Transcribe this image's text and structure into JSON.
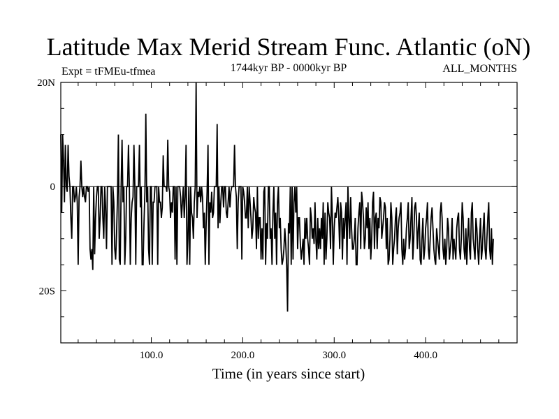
{
  "chart_data": {
    "type": "line",
    "title": "Latitude Max Merid Stream Func. Atlantic (oN)",
    "left_subtitle": "Expt = tFMEu-tfmea",
    "center_subtitle": "1744kyr BP - 0000kyr BP",
    "right_subtitle": "ALL_MONTHS",
    "xlabel": "Time (in years since start)",
    "ylabel": "",
    "xlim": [
      1,
      500
    ],
    "ylim": [
      -30,
      20
    ],
    "x_ticks": [
      100,
      200,
      300,
      400
    ],
    "x_tick_labels": [
      "100.0",
      "200.0",
      "300.0",
      "400.0"
    ],
    "y_ticks": [
      20,
      0,
      -20
    ],
    "y_tick_labels": [
      "20N",
      "0",
      "20S"
    ],
    "y_minor_ticks": [
      15,
      10,
      5,
      -5,
      -10,
      -15,
      -25
    ],
    "zero_line": true,
    "grid": false,
    "legend": "none",
    "series": [
      {
        "line_color": "#000000",
        "x_start": 1,
        "x_step": 1,
        "values": [
          10,
          -5,
          10,
          5,
          -3,
          8,
          0,
          -1,
          8,
          2,
          0,
          -6,
          -10,
          0,
          0,
          -3,
          -2,
          0,
          -3,
          -15,
          -2,
          0,
          5,
          0,
          -2,
          0,
          -2,
          -3,
          0,
          0,
          -1,
          0,
          -12,
          -14,
          -12,
          -16,
          0,
          -13,
          -6,
          -2,
          0,
          0,
          -10,
          -6,
          0,
          0,
          -6,
          -10,
          0,
          -4,
          -12,
          0,
          0,
          0,
          0,
          0,
          -15,
          0,
          -3,
          -12,
          -14,
          -9,
          -2,
          10,
          -14,
          -15,
          0,
          9,
          -3,
          0,
          -15,
          -10,
          0,
          0,
          8,
          0,
          -15,
          -6,
          -3,
          -2,
          8,
          0,
          -15,
          0,
          0,
          0,
          8,
          -4,
          0,
          -15,
          -15,
          -7,
          -1,
          14,
          -3,
          0,
          -12,
          -15,
          0,
          0,
          -15,
          -3,
          -3,
          0,
          0,
          0,
          -15,
          0,
          -3,
          -3,
          -6,
          -4,
          6,
          0,
          0,
          0,
          -1,
          9,
          0,
          -1,
          -6,
          -3,
          -5,
          0,
          0,
          -14,
          0,
          -15,
          0,
          0,
          0,
          -2,
          -6,
          -3,
          0,
          -6,
          -2,
          8,
          -15,
          -10,
          0,
          -15,
          0,
          -5,
          -6,
          -10,
          -3,
          0,
          20,
          -6,
          -1,
          -2,
          0,
          -3,
          0,
          -2,
          -8,
          -5,
          -15,
          -7,
          -1,
          8,
          -15,
          -3,
          -5,
          -1,
          -6,
          -5,
          0,
          0,
          0,
          12,
          -8,
          0,
          -7,
          -3,
          0,
          0,
          -4,
          0,
          0,
          -5,
          -6,
          -3,
          0,
          -4,
          -1,
          0,
          0,
          0,
          8,
          0,
          -2,
          -12,
          -3,
          0,
          0,
          0,
          -14,
          0,
          -1,
          -3,
          -6,
          -6,
          0,
          -8,
          0,
          -3,
          -6,
          -10,
          -8,
          -2,
          -4,
          -5,
          -12,
          0,
          -10,
          -6,
          -6,
          -14,
          -8,
          -14,
          -1,
          0,
          -15,
          -7,
          -10,
          0,
          0,
          -10,
          -8,
          -15,
          -5,
          0,
          -10,
          -5,
          -15,
          -3,
          0,
          -8,
          -6,
          -12,
          -15,
          -14,
          -12,
          -8,
          -11,
          -15,
          -24,
          -7,
          -9,
          0,
          -15,
          0,
          -14,
          -3,
          0,
          -5,
          0,
          -12,
          -6,
          -6,
          -11,
          -14,
          -12,
          -10,
          -15,
          -6,
          -10,
          -6,
          -10,
          -12,
          -15,
          -4,
          -6,
          -10,
          -8,
          -11,
          -3,
          -10,
          -14,
          -6,
          -12,
          -8,
          -12,
          -6,
          -10,
          -3,
          -15,
          -5,
          -14,
          -10,
          -3,
          -5,
          -6,
          -12,
          0,
          -6,
          -15,
          -8,
          -5,
          -6,
          -4,
          -2,
          -6,
          -12,
          -3,
          -5,
          -14,
          -6,
          -10,
          -6,
          -3,
          -15,
          0,
          -6,
          -10,
          -2,
          -8,
          -12,
          -12,
          -10,
          -6,
          -15,
          -15,
          -8,
          -5,
          -3,
          -12,
          -1,
          -3,
          -6,
          -12,
          -10,
          -4,
          -8,
          -3,
          -12,
          -6,
          -14,
          -10,
          -3,
          -1,
          -12,
          -6,
          -5,
          -12,
          -6,
          -8,
          -2,
          -3,
          -10,
          -8,
          -6,
          -3,
          -4,
          -12,
          -6,
          -15,
          -14,
          -10,
          -3,
          -6,
          -15,
          -12,
          -10,
          -6,
          -4,
          -13,
          -8,
          -6,
          -5,
          -3,
          -12,
          -15,
          -10,
          -14,
          -12,
          -8,
          -6,
          -3,
          -12,
          -10,
          -6,
          -2,
          -14,
          -10,
          -4,
          -3,
          -6,
          -12,
          -8,
          -5,
          -14,
          -15,
          -10,
          -6,
          -14,
          -12,
          -8,
          -6,
          -3,
          -12,
          -14,
          -10,
          -6,
          -4,
          -8,
          -12,
          -14,
          -15,
          -8,
          -10,
          -12,
          -14,
          -5,
          -3,
          -6,
          -12,
          -14,
          -10,
          -15,
          -12,
          -6,
          -8,
          -14,
          -12,
          -10,
          -6,
          -14,
          -10,
          -12,
          -14,
          -8,
          -6,
          -5,
          -12,
          -14,
          -10,
          -3,
          -6,
          -12,
          -14,
          -8,
          -15,
          -10,
          -6,
          -12,
          -14,
          -5,
          -3,
          -10,
          -12,
          -14,
          -6,
          -8,
          -12,
          -15,
          -10,
          -6,
          -14,
          -12,
          -8,
          -5,
          -12,
          -14,
          -10,
          -6,
          -3,
          -12,
          -14,
          -8,
          -15,
          -10
        ]
      }
    ]
  }
}
